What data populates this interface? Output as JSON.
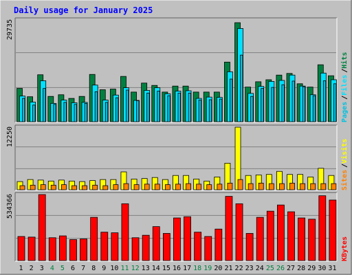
{
  "title": "Daily usage for January 2025",
  "colors": {
    "background": "#c0c0c0",
    "plot_bg": "#c0c0c0",
    "title": "#0000ff",
    "hits": "#008040",
    "files": "#00e0ff",
    "pages": "#00c0e0",
    "visits": "#ffff00",
    "sites": "#ff8000",
    "kbytes": "#ff0000",
    "weekend_day": "#008040",
    "weekday": "#000000",
    "grid": "#808080"
  },
  "labels": {
    "hits": "Hits",
    "files": "Files",
    "pages": "Pages",
    "visits": "Visits",
    "sites": "Sites",
    "kbytes": "KBytes",
    "sep": "/"
  },
  "chart_data": [
    {
      "type": "bar",
      "title": "Daily usage for January 2025",
      "x": [
        1,
        2,
        3,
        4,
        5,
        6,
        7,
        8,
        9,
        10,
        11,
        12,
        13,
        14,
        15,
        16,
        17,
        18,
        19,
        20,
        21,
        22,
        23,
        24,
        25,
        26,
        27,
        28,
        29,
        30,
        31
      ],
      "weekend_days": [
        4,
        5,
        11,
        12,
        18,
        19,
        25,
        26
      ],
      "ylim": [
        0,
        29735
      ],
      "ytick_label": "29735",
      "series": [
        {
          "name": "Hits",
          "values": [
            10000,
            7500,
            14100,
            7600,
            8100,
            7000,
            7600,
            14200,
            9600,
            9800,
            13600,
            8900,
            11600,
            10900,
            8900,
            10700,
            10700,
            8900,
            8900,
            8900,
            17900,
            29735,
            10400,
            12000,
            12600,
            14000,
            14500,
            11400,
            10400,
            17100,
            13800
          ]
        },
        {
          "name": "Files",
          "values": [
            7700,
            5900,
            12300,
            5500,
            6500,
            5700,
            5800,
            11000,
            6500,
            8000,
            10200,
            6400,
            9400,
            10200,
            8400,
            9200,
            9300,
            7000,
            7400,
            7300,
            15000,
            28000,
            8500,
            10600,
            12100,
            12400,
            14000,
            10700,
            8100,
            14600,
            12600
          ]
        },
        {
          "name": "Pages",
          "values": [
            7000,
            5000,
            10000,
            5200,
            5800,
            5200,
            5500,
            9000,
            5800,
            7200,
            9500,
            6300,
            8600,
            9200,
            7800,
            8600,
            8600,
            6500,
            6600,
            6800,
            12800,
            20000,
            7600,
            10000,
            10300,
            11100,
            12200,
            10500,
            7800,
            12300,
            11400
          ]
        }
      ]
    },
    {
      "type": "bar",
      "ylim": [
        0,
        12250
      ],
      "ytick_label": "12250",
      "series": [
        {
          "name": "Visits",
          "values": [
            1600,
            2000,
            1900,
            1700,
            1900,
            1700,
            1600,
            1800,
            2000,
            2000,
            3500,
            2100,
            2200,
            2400,
            2000,
            2800,
            2800,
            2100,
            1700,
            2500,
            5200,
            12250,
            2800,
            2900,
            3000,
            3600,
            3000,
            3000,
            2500,
            4200,
            2800
          ]
        },
        {
          "name": "Sites",
          "values": [
            800,
            900,
            1000,
            900,
            1000,
            800,
            800,
            900,
            800,
            1000,
            1200,
            1000,
            1100,
            1100,
            1000,
            1100,
            1200,
            1100,
            1000,
            1100,
            1300,
            2000,
            1200,
            1300,
            1200,
            1200,
            1300,
            1200,
            1200,
            1200,
            1200
          ]
        }
      ]
    },
    {
      "type": "bar",
      "ylim": [
        0,
        534366
      ],
      "ytick_label": "534366",
      "series": [
        {
          "name": "KBytes",
          "values": [
            195000,
            190000,
            534366,
            185000,
            200000,
            170000,
            175000,
            350000,
            230000,
            225000,
            460000,
            185000,
            205000,
            275000,
            220000,
            345000,
            355000,
            230000,
            195000,
            255000,
            520000,
            460000,
            220000,
            350000,
            400000,
            450000,
            395000,
            345000,
            335000,
            525000,
            490000
          ]
        }
      ]
    }
  ]
}
